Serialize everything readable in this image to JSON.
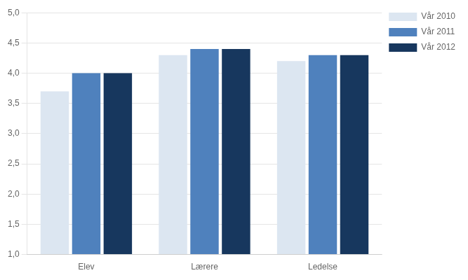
{
  "chart_data": {
    "type": "bar",
    "categories": [
      "Elev",
      "Lærere",
      "Ledelse"
    ],
    "series": [
      {
        "name": "Vår 2010",
        "color": "#dce6f1",
        "values": [
          3.7,
          4.3,
          4.2
        ]
      },
      {
        "name": "Vår 2011",
        "color": "#4f81bd",
        "values": [
          4.0,
          4.4,
          4.3
        ]
      },
      {
        "name": "Vår 2012",
        "color": "#17375e",
        "values": [
          4.0,
          4.4,
          4.3
        ]
      }
    ],
    "ylim": [
      1.0,
      5.0
    ],
    "yticks": [
      {
        "value": 1.0,
        "label": "1,0"
      },
      {
        "value": 1.5,
        "label": "1,5"
      },
      {
        "value": 2.0,
        "label": "2,0"
      },
      {
        "value": 2.5,
        "label": "2,5"
      },
      {
        "value": 3.0,
        "label": "3,0"
      },
      {
        "value": 3.5,
        "label": "3,5"
      },
      {
        "value": 4.0,
        "label": "4,0"
      },
      {
        "value": 4.5,
        "label": "4,5"
      },
      {
        "value": 5.0,
        "label": "5,0"
      }
    ],
    "grid": true,
    "legend": "right"
  }
}
